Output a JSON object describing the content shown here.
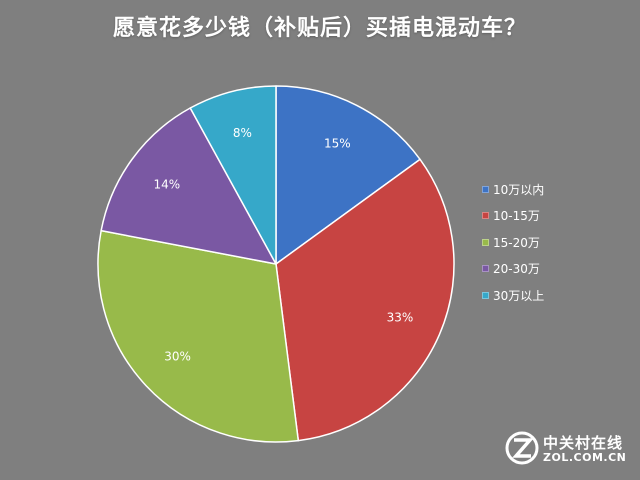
{
  "chart_data": {
    "type": "pie",
    "title": "愿意花多少钱（补贴后）买插电混动车？",
    "categories": [
      "10万以内",
      "10-15万",
      "15-20万",
      "20-30万",
      "30万以上"
    ],
    "values": [
      15,
      33,
      30,
      14,
      8
    ],
    "data_labels": [
      "15%",
      "33%",
      "30%",
      "14%",
      "8%"
    ],
    "colors": [
      "#3d73c5",
      "#c74442",
      "#98ba4a",
      "#7a58a3",
      "#36a8c9"
    ],
    "legend_position": "right",
    "start_angle": "12 o'clock",
    "direction": "clockwise",
    "background": "#7f7f7f"
  },
  "watermark": {
    "brand": "中关村在线",
    "domain": "ZOL.COM.CN"
  }
}
